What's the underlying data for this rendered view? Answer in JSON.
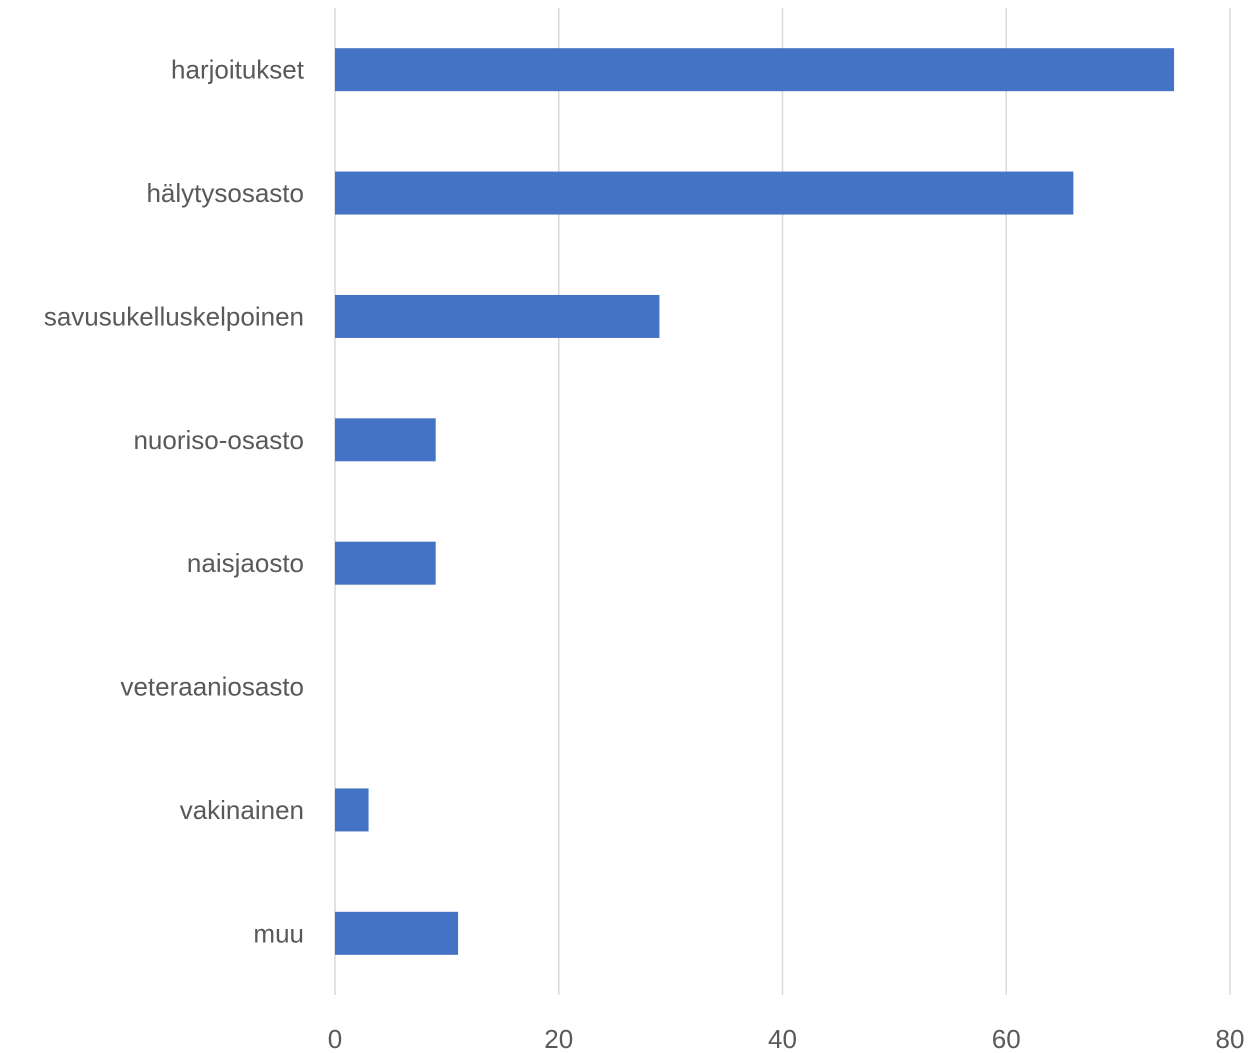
{
  "chart_data": {
    "type": "bar",
    "orientation": "horizontal",
    "categories": [
      "harjoitukset",
      "hälytysosasto",
      "savusukelluskelpoinen",
      "nuoriso-osasto",
      "naisjaosto",
      "veteraaniosasto",
      "vakinainen",
      "muu"
    ],
    "values": [
      75,
      66,
      29,
      9,
      9,
      0,
      3,
      11
    ],
    "xlim": [
      0,
      80
    ],
    "xticks": [
      "0",
      "20",
      "40",
      "60",
      "80"
    ],
    "grid": true,
    "legend": "none",
    "bar_color": "#4472C4",
    "grid_color": "#D9D9D9",
    "label_color": "#595959"
  }
}
